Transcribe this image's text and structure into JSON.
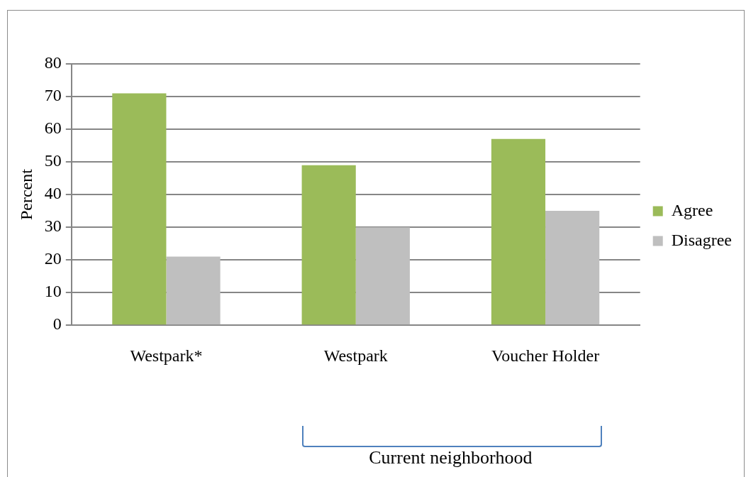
{
  "chart_data": {
    "type": "bar",
    "ylabel": "Percent",
    "categories": [
      "Westpark*",
      "Westpark",
      "Voucher Holder"
    ],
    "series": [
      {
        "name": "Agree",
        "color": "#9bbb59",
        "values": [
          71,
          49,
          57
        ]
      },
      {
        "name": "Disagree",
        "color": "#bfbfbf",
        "values": [
          21,
          30,
          35
        ]
      }
    ],
    "ylim": [
      0,
      80
    ],
    "yticks": [
      0,
      10,
      20,
      30,
      40,
      50,
      60,
      70,
      80
    ],
    "grid": "y",
    "legend": "right",
    "annotations": [
      "Current neighborhood"
    ]
  }
}
